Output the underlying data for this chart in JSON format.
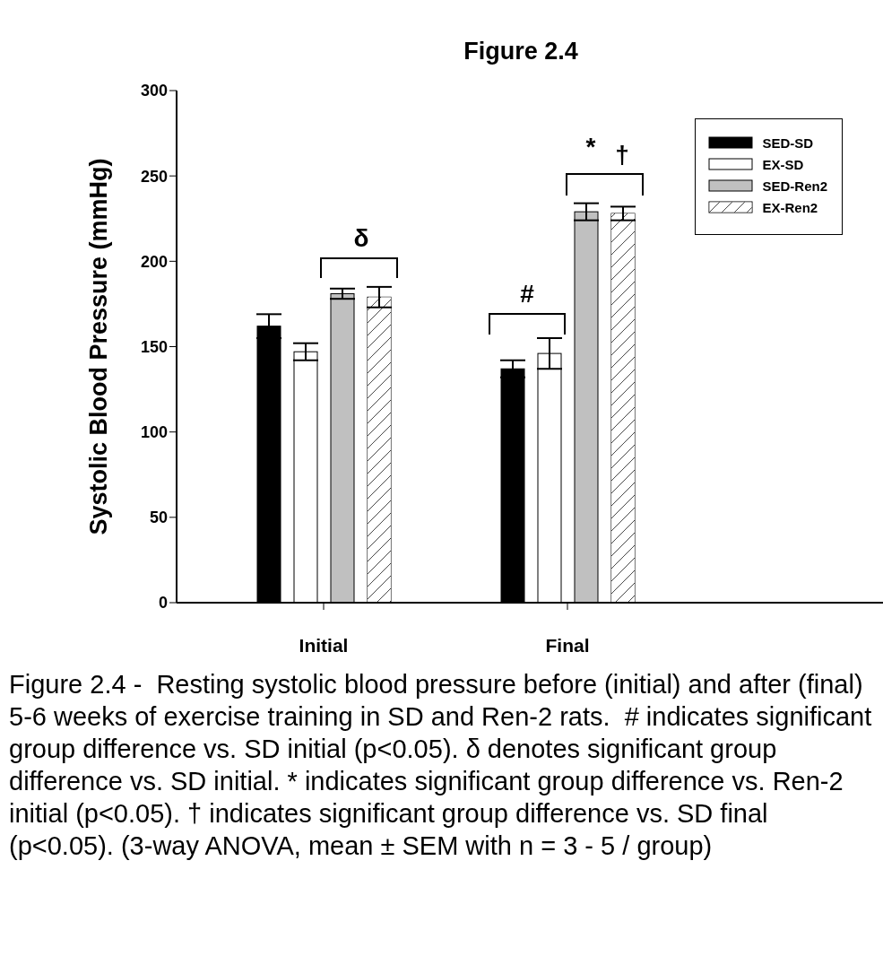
{
  "chart_data": {
    "type": "bar",
    "title": "Figure 2.4",
    "ylabel": "Systolic Blood Pressure (mmHg)",
    "categories": [
      "Initial",
      "Final"
    ],
    "series": [
      {
        "name": "SED-SD",
        "color": "#000000",
        "values": [
          162,
          137
        ],
        "errors": [
          7,
          5
        ]
      },
      {
        "name": "EX-SD",
        "color": "#ffffff",
        "values": [
          147,
          146
        ],
        "errors": [
          5,
          9
        ]
      },
      {
        "name": "SED-Ren2",
        "color": "#c0c0c0",
        "values": [
          181,
          229
        ],
        "errors": [
          3,
          5
        ]
      },
      {
        "name": "EX-Ren2",
        "color": "#ffffff",
        "values": [
          179,
          228
        ],
        "errors": [
          6,
          4
        ]
      }
    ],
    "ylim": [
      0,
      300
    ],
    "yticks": [
      0,
      50,
      100,
      150,
      200,
      250,
      300
    ],
    "grid": false,
    "legend": "top right",
    "annotations": [
      "δ",
      "#",
      "*",
      "†",
      "Figure 2.4 -  Resting systolic blood pressure before (initial) and after (final) 5-6 weeks of exercise training in SD and Ren-2 rats.  # indicates significant group difference vs. SD initial (p<0.05). δ denotes significant group difference vs. SD initial. * indicates significant group difference vs. Ren-2 initial (p<0.05). † indicates significant group difference vs. SD final (p<0.05). (3-way ANOVA, mean ± SEM with n = 3 - 5 / group)"
    ]
  }
}
